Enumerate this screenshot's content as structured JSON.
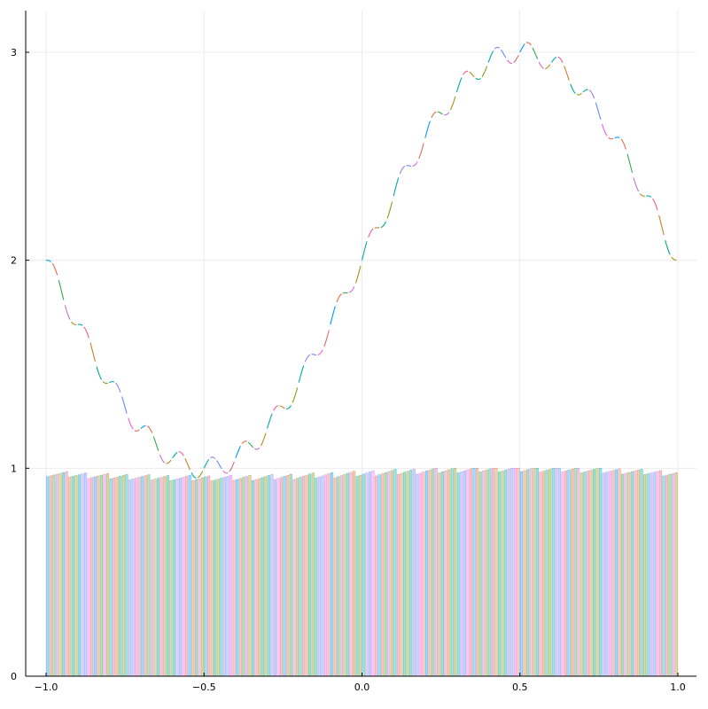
{
  "colors": {
    "palette": [
      "#009AFA",
      "#E36F47",
      "#3EA44E",
      "#C371D2",
      "#AC8E18",
      "#00A9AD",
      "#ED5E93",
      "#C68225",
      "#00A98D",
      "#8E971E",
      "#00A9AF",
      "#9B7FE9",
      "#618DF6",
      "#F061DD",
      "#DC6B69"
    ],
    "axis": "#000000",
    "grid": "#e8e8e8",
    "background": "#ffffff"
  },
  "chart_data": {
    "type": "bar",
    "overlay_type": "line",
    "title": "",
    "xlabel": "",
    "ylabel": "",
    "xlim": [
      -1.0,
      1.0
    ],
    "ylim": [
      0,
      3.2
    ],
    "grid": true,
    "legend": "none",
    "x_ticks": [
      -1.0,
      -0.5,
      0.0,
      0.5,
      1.0
    ],
    "x_tick_labels": [
      "−1.0",
      "−0.5",
      "0.0",
      "0.5",
      "1.0"
    ],
    "y_ticks": [
      0,
      1,
      2,
      3
    ],
    "y_tick_labels": [
      "0",
      "1",
      "2",
      "3"
    ],
    "line_function": "2 + sin(pi*x) + 0.05*sin(20*pi*x)",
    "bar_count": 200,
    "bar_value_range": [
      0.94,
      1.0
    ],
    "segment_count": 100
  }
}
